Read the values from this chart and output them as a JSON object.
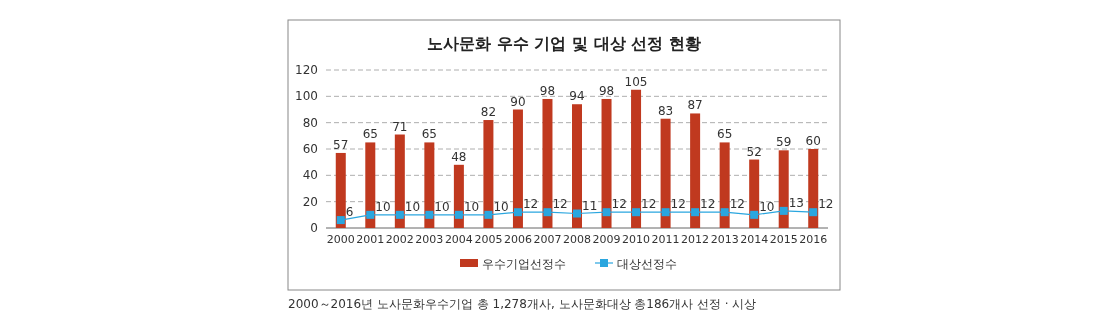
{
  "chart_data": {
    "type": "bar",
    "title": "노사문화 우수 기업 및 대상 선정 현황",
    "categories": [
      "2000",
      "2001",
      "2002",
      "2003",
      "2004",
      "2005",
      "2006",
      "2007",
      "2008",
      "2009",
      "2010",
      "2011",
      "2012",
      "2013",
      "2014",
      "2015",
      "2016"
    ],
    "series": [
      {
        "name": "우수기업선정수",
        "color": "#c0391f",
        "values": [
          57,
          65,
          71,
          65,
          48,
          82,
          90,
          98,
          94,
          98,
          105,
          83,
          87,
          65,
          52,
          59,
          60
        ]
      },
      {
        "name": "대상선정수",
        "type": "line",
        "color": "#2aa6df",
        "marker": "square",
        "line_style": "solid",
        "values": [
          6,
          10,
          10,
          10,
          10,
          10,
          12,
          12,
          11,
          12,
          12,
          12,
          12,
          12,
          10,
          13,
          12
        ]
      }
    ],
    "ylim": [
      0,
      120
    ],
    "yticks": [
      0,
      20,
      40,
      60,
      80,
      100,
      120
    ],
    "grid": "y",
    "legend": "bottom",
    "data_labels": true,
    "annotations": [
      "2000～2016년 노사문화우수기업 총 1,278개사, 노사문화대상 총186개사 선정 · 시상"
    ]
  }
}
